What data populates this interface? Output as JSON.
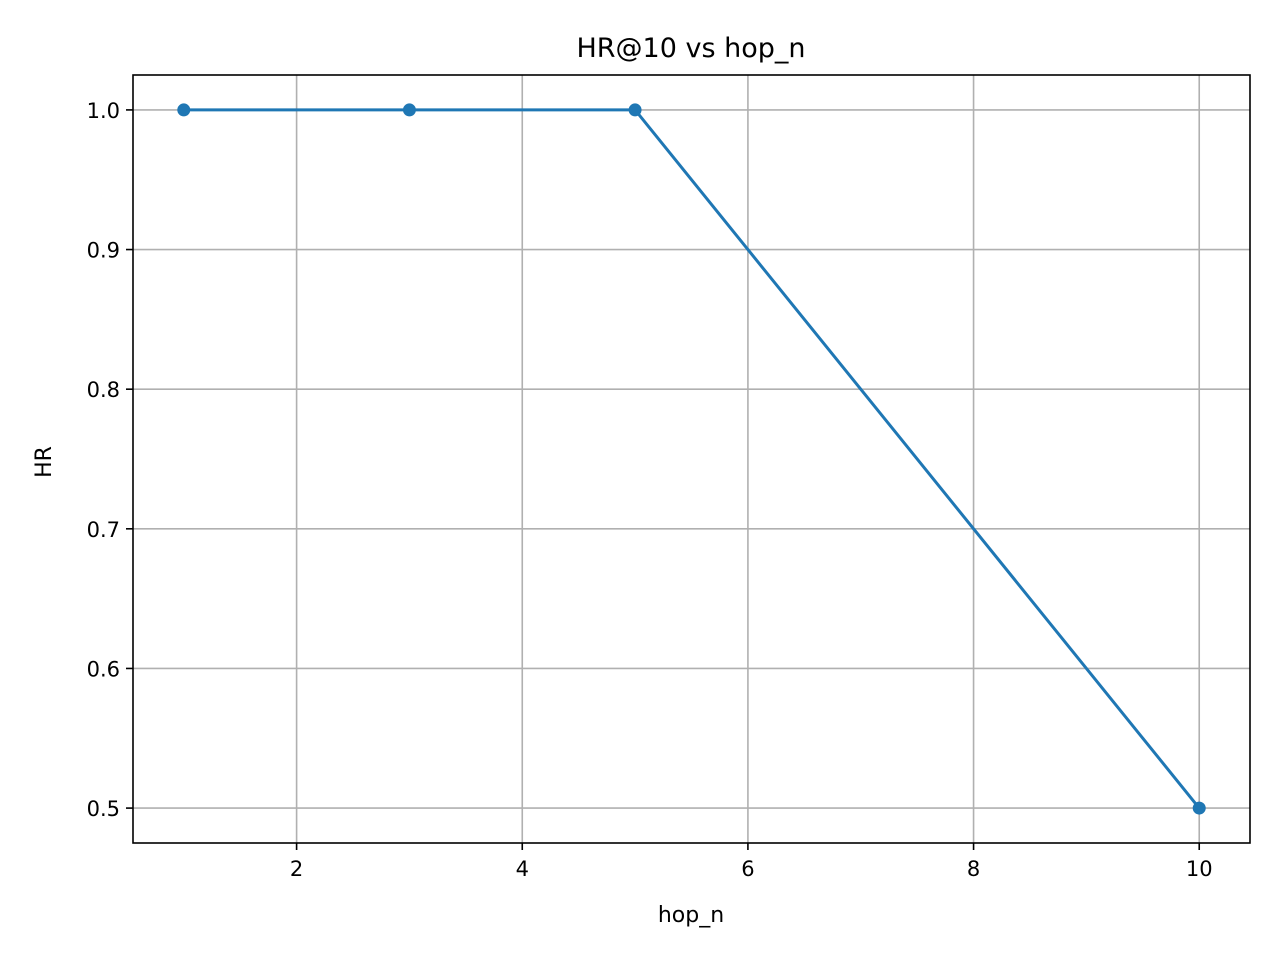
{
  "chart_data": {
    "type": "line",
    "title": "HR@10 vs hop_n",
    "xlabel": "hop_n",
    "ylabel": "HR",
    "xlim": [
      0.55,
      10.45
    ],
    "ylim": [
      0.475,
      1.025
    ],
    "xticks": [
      2,
      4,
      6,
      8,
      10
    ],
    "xtick_labels": [
      "2",
      "4",
      "6",
      "8",
      "10"
    ],
    "yticks": [
      0.5,
      0.6,
      0.7,
      0.8,
      0.9,
      1.0
    ],
    "ytick_labels": [
      "0.5",
      "0.6",
      "0.7",
      "0.8",
      "0.9",
      "1.0"
    ],
    "grid": true,
    "series": [
      {
        "x": [
          1,
          3,
          5,
          10
        ],
        "y": [
          1.0,
          1.0,
          1.0,
          0.5
        ],
        "color": "#1f77b4",
        "marker": "circle"
      }
    ]
  }
}
